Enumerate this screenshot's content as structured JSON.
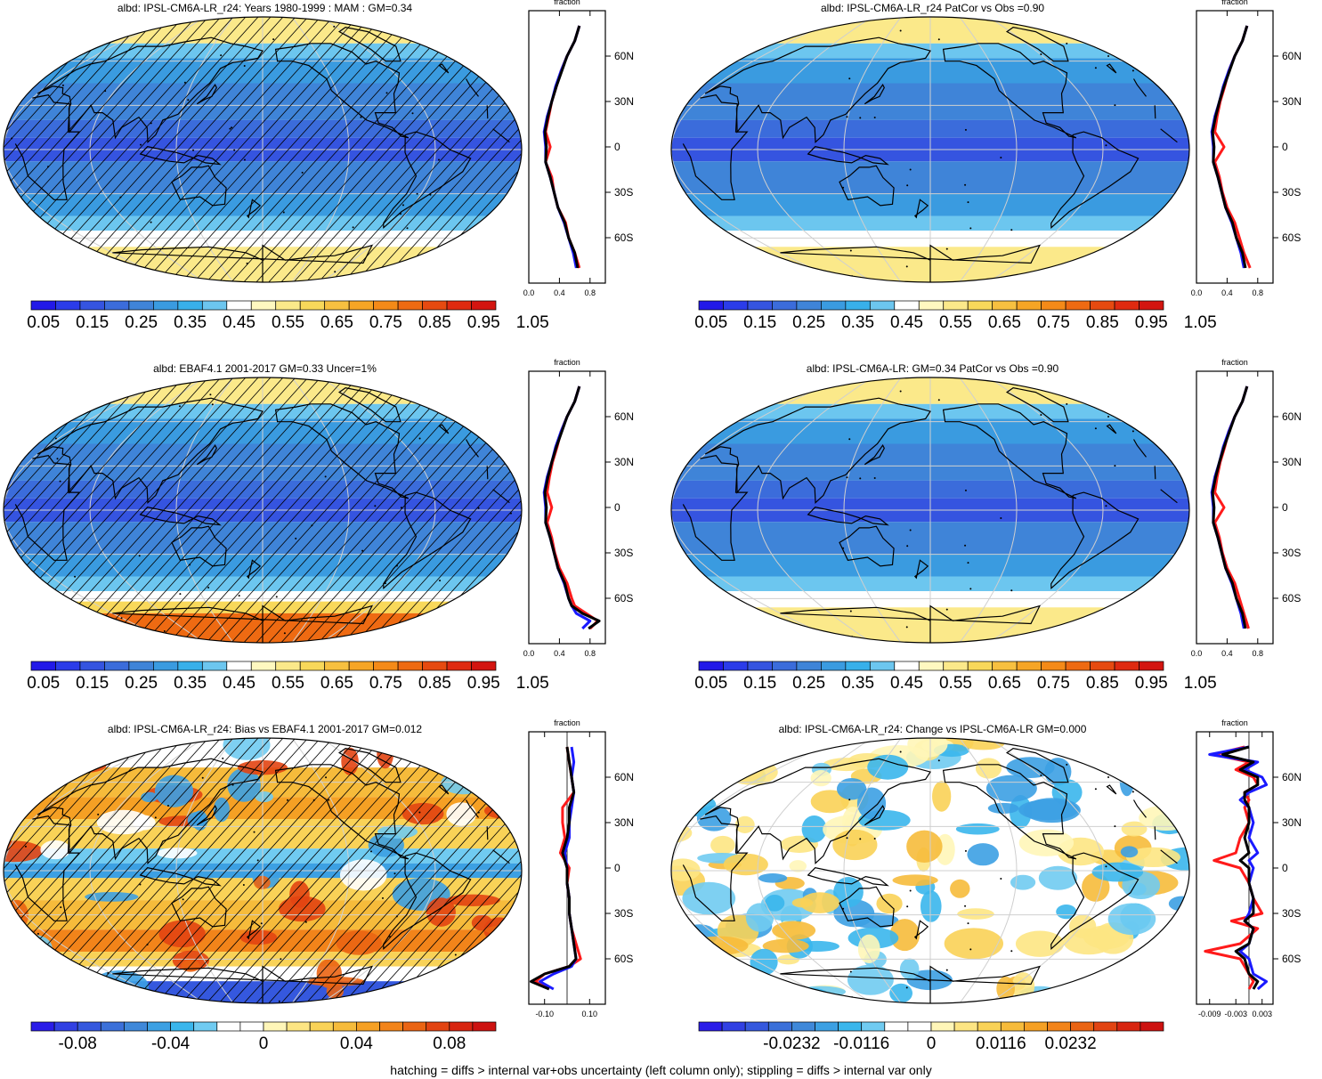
{
  "footer": "hatching = diffs > internal var+obs uncertainty (left column only); stippling = diffs > internal var only",
  "colors": {
    "abs_scale": [
      "#2219e8",
      "#2b3ce9",
      "#3554e0",
      "#3b6cdb",
      "#3f84d8",
      "#3a9be0",
      "#38b0ea",
      "#6cc6ef",
      "#ffffff",
      "#fff8c0",
      "#fbe98a",
      "#f8d85a",
      "#f7c040",
      "#f6a525",
      "#f48a18",
      "#ee6a12",
      "#e64a10",
      "#df2a10",
      "#d31510"
    ],
    "land_outline": "#000000",
    "red_series": "#ff1a1a",
    "blue_series": "#1a1aff",
    "black_series": "#000000"
  },
  "panels": [
    {
      "title": "albd: IPSL-CM6A-LR_r24: Years 1980-1999 : MAM : GM=0.34",
      "map_kind": "albedo",
      "hatched": true,
      "zonal": {
        "label": "fraction",
        "xlim": [
          0,
          1
        ],
        "xticks": [
          "0.0",
          "0.4",
          "0.8"
        ],
        "xtick_vals": [
          0,
          0.4,
          0.8
        ],
        "ylim": [
          -90,
          90
        ],
        "yticks": [
          "60N",
          "30N",
          "0",
          "30S",
          "60S"
        ],
        "ytick_vals": [
          60,
          30,
          0,
          -30,
          -60
        ],
        "ref_line": null,
        "lat": [
          80,
          70,
          60,
          50,
          40,
          30,
          20,
          10,
          0,
          -10,
          -20,
          -30,
          -40,
          -50,
          -60,
          -70,
          -80
        ],
        "red": [
          0.66,
          0.6,
          0.5,
          0.42,
          0.36,
          0.3,
          0.26,
          0.22,
          0.28,
          0.22,
          0.3,
          0.33,
          0.38,
          0.48,
          0.52,
          0.6,
          0.66
        ],
        "blue": [
          0.66,
          0.6,
          0.5,
          0.42,
          0.35,
          0.3,
          0.24,
          0.2,
          0.22,
          0.22,
          0.28,
          0.33,
          0.38,
          0.46,
          0.52,
          0.58,
          0.62
        ],
        "black": [
          0.66,
          0.6,
          0.5,
          0.43,
          0.36,
          0.3,
          0.25,
          0.21,
          0.23,
          0.22,
          0.28,
          0.33,
          0.38,
          0.47,
          0.52,
          0.6,
          0.64
        ]
      },
      "colorbar": {
        "kind": "abs",
        "labels": [
          "0.05",
          "0.15",
          "0.25",
          "0.35",
          "0.45",
          "0.55",
          "0.65",
          "0.75",
          "0.85",
          "0.95",
          "1.05"
        ]
      }
    },
    {
      "title": "albd: IPSL-CM6A-LR_r24 PatCor vs Obs =0.90",
      "map_kind": "albedo",
      "hatched": false,
      "zonal": {
        "label": "fraction",
        "xlim": [
          0,
          1
        ],
        "xticks": [
          "0.0",
          "0.4",
          "0.8"
        ],
        "xtick_vals": [
          0,
          0.4,
          0.8
        ],
        "ylim": [
          -90,
          90
        ],
        "yticks": [
          "60N",
          "30N",
          "0",
          "30S",
          "60S"
        ],
        "ytick_vals": [
          60,
          30,
          0,
          -30,
          -60
        ],
        "ref_line": null,
        "lat": [
          80,
          70,
          60,
          50,
          40,
          30,
          20,
          10,
          0,
          -10,
          -20,
          -30,
          -40,
          -50,
          -60,
          -70,
          -80
        ],
        "red": [
          0.66,
          0.6,
          0.5,
          0.42,
          0.37,
          0.31,
          0.27,
          0.24,
          0.36,
          0.24,
          0.3,
          0.34,
          0.4,
          0.5,
          0.56,
          0.62,
          0.7
        ],
        "blue": [
          0.66,
          0.6,
          0.5,
          0.42,
          0.35,
          0.3,
          0.24,
          0.2,
          0.22,
          0.22,
          0.28,
          0.33,
          0.38,
          0.46,
          0.52,
          0.58,
          0.62
        ],
        "black": [
          0.66,
          0.6,
          0.5,
          0.43,
          0.36,
          0.3,
          0.25,
          0.21,
          0.23,
          0.22,
          0.28,
          0.33,
          0.38,
          0.47,
          0.52,
          0.6,
          0.64
        ]
      },
      "colorbar": {
        "kind": "abs",
        "labels": [
          "0.05",
          "0.15",
          "0.25",
          "0.35",
          "0.45",
          "0.55",
          "0.65",
          "0.75",
          "0.85",
          "0.95",
          "1.05"
        ]
      }
    },
    {
      "title": "albd: EBAF4.1 2001-2017 GM=0.33 Uncer=1%",
      "map_kind": "albedo_obs",
      "hatched": true,
      "zonal": {
        "label": "fraction",
        "xlim": [
          0,
          1
        ],
        "xticks": [
          "0.0",
          "0.4",
          "0.8"
        ],
        "xtick_vals": [
          0,
          0.4,
          0.8
        ],
        "ylim": [
          -90,
          90
        ],
        "yticks": [
          "60N",
          "30N",
          "0",
          "30S",
          "60S"
        ],
        "ytick_vals": [
          60,
          30,
          0,
          -30,
          -60
        ],
        "ref_line": null,
        "lat": [
          80,
          70,
          60,
          50,
          40,
          30,
          20,
          10,
          0,
          -10,
          -20,
          -30,
          -40,
          -50,
          -60,
          -65,
          -70,
          -75,
          -80
        ],
        "red": [
          0.66,
          0.6,
          0.5,
          0.42,
          0.37,
          0.31,
          0.27,
          0.24,
          0.3,
          0.24,
          0.3,
          0.34,
          0.4,
          0.5,
          0.56,
          0.6,
          0.75,
          0.9,
          0.8
        ],
        "blue": [
          0.66,
          0.6,
          0.5,
          0.42,
          0.35,
          0.3,
          0.24,
          0.2,
          0.22,
          0.22,
          0.28,
          0.33,
          0.38,
          0.46,
          0.52,
          0.56,
          0.62,
          0.8,
          0.7
        ],
        "black": [
          0.66,
          0.6,
          0.5,
          0.43,
          0.36,
          0.3,
          0.25,
          0.21,
          0.23,
          0.22,
          0.28,
          0.33,
          0.38,
          0.47,
          0.52,
          0.56,
          0.7,
          0.92,
          0.78
        ]
      },
      "colorbar": {
        "kind": "abs",
        "labels": [
          "0.05",
          "0.15",
          "0.25",
          "0.35",
          "0.45",
          "0.55",
          "0.65",
          "0.75",
          "0.85",
          "0.95",
          "1.05"
        ]
      }
    },
    {
      "title": "albd: IPSL-CM6A-LR: GM=0.34 PatCor vs Obs =0.90",
      "map_kind": "albedo",
      "hatched": false,
      "zonal": {
        "label": "fraction",
        "xlim": [
          0,
          1
        ],
        "xticks": [
          "0.0",
          "0.4",
          "0.8"
        ],
        "xtick_vals": [
          0,
          0.4,
          0.8
        ],
        "ylim": [
          -90,
          90
        ],
        "yticks": [
          "60N",
          "30N",
          "0",
          "30S",
          "60S"
        ],
        "ytick_vals": [
          60,
          30,
          0,
          -30,
          -60
        ],
        "ref_line": null,
        "lat": [
          80,
          70,
          60,
          50,
          40,
          30,
          20,
          10,
          0,
          -10,
          -20,
          -30,
          -40,
          -50,
          -60,
          -70,
          -80
        ],
        "red": [
          0.66,
          0.6,
          0.5,
          0.42,
          0.37,
          0.31,
          0.27,
          0.24,
          0.36,
          0.24,
          0.3,
          0.34,
          0.4,
          0.5,
          0.56,
          0.62,
          0.68
        ],
        "blue": [
          0.66,
          0.6,
          0.5,
          0.42,
          0.35,
          0.3,
          0.24,
          0.2,
          0.22,
          0.22,
          0.28,
          0.33,
          0.38,
          0.46,
          0.52,
          0.58,
          0.62
        ],
        "black": [
          0.66,
          0.6,
          0.5,
          0.43,
          0.36,
          0.3,
          0.25,
          0.21,
          0.23,
          0.22,
          0.28,
          0.33,
          0.38,
          0.47,
          0.52,
          0.6,
          0.64
        ]
      },
      "colorbar": {
        "kind": "abs",
        "labels": [
          "0.05",
          "0.15",
          "0.25",
          "0.35",
          "0.45",
          "0.55",
          "0.65",
          "0.75",
          "0.85",
          "0.95",
          "1.05"
        ]
      }
    },
    {
      "title": "albd: IPSL-CM6A-LR_r24: Bias vs EBAF4.1 2001-2017 GM=0.012",
      "map_kind": "bias",
      "hatched": true,
      "zonal": {
        "label": "fraction",
        "xlim": [
          -0.17,
          0.17
        ],
        "xticks": [
          "-0.10",
          "0.10"
        ],
        "xtick_vals": [
          -0.1,
          0.1
        ],
        "ylim": [
          -90,
          90
        ],
        "yticks": [
          "60N",
          "30N",
          "0",
          "30S",
          "60S"
        ],
        "ytick_vals": [
          60,
          30,
          0,
          -30,
          -60
        ],
        "ref_line": 0,
        "lat": [
          80,
          70,
          60,
          50,
          40,
          30,
          20,
          10,
          0,
          -10,
          -20,
          -30,
          -40,
          -50,
          -60,
          -65,
          -70,
          -75,
          -80
        ],
        "red": [
          0.0,
          0.01,
          0.02,
          0.03,
          -0.02,
          -0.02,
          -0.01,
          -0.03,
          0.01,
          0.0,
          0.01,
          0.01,
          0.02,
          0.04,
          0.06,
          0.01,
          -0.1,
          -0.14,
          -0.08
        ],
        "blue": [
          0.02,
          0.03,
          0.02,
          0.03,
          0.02,
          0.01,
          0.01,
          -0.01,
          0.0,
          0.0,
          0.01,
          0.01,
          0.02,
          0.03,
          0.04,
          0.02,
          -0.06,
          -0.12,
          -0.06
        ],
        "black": [
          0.0,
          0.01,
          0.02,
          0.03,
          0.01,
          0.01,
          0.0,
          -0.02,
          0.0,
          0.0,
          0.01,
          0.01,
          0.02,
          0.03,
          0.04,
          0.01,
          -0.1,
          -0.16,
          -0.08
        ]
      },
      "colorbar": {
        "kind": "div",
        "labels": [
          "-0.08",
          "-0.04",
          "0",
          "0.04",
          "0.08"
        ],
        "label_cells": [
          2,
          6,
          10,
          14,
          18
        ]
      }
    },
    {
      "title": "albd: IPSL-CM6A-LR_r24: Change vs IPSL-CM6A-LR GM=0.000",
      "map_kind": "change",
      "hatched": false,
      "zonal": {
        "label": "fraction",
        "xlim": [
          -0.012,
          0.0055
        ],
        "xticks": [
          "-0.009",
          "-0.003",
          "0.003"
        ],
        "xtick_vals": [
          -0.009,
          -0.003,
          0.003
        ],
        "ylim": [
          -90,
          90
        ],
        "yticks": [
          "60N",
          "30N",
          "0",
          "30S",
          "60S"
        ],
        "ytick_vals": [
          60,
          30,
          0,
          -30,
          -60
        ],
        "ref_line": 0,
        "lat": [
          80,
          75,
          70,
          65,
          60,
          55,
          50,
          45,
          40,
          30,
          20,
          10,
          5,
          0,
          -10,
          -20,
          -30,
          -35,
          -40,
          -50,
          -55,
          -60,
          -70,
          -75,
          -80
        ],
        "red": [
          -0.001,
          -0.008,
          0.0,
          -0.003,
          0.001,
          0.002,
          -0.001,
          0.0,
          -0.001,
          0.0,
          -0.002,
          -0.003,
          -0.008,
          -0.002,
          0.0,
          0.001,
          0.003,
          -0.004,
          0.002,
          -0.002,
          -0.01,
          -0.002,
          0.0,
          0.001,
          0.0
        ],
        "blue": [
          0.0,
          -0.009,
          0.002,
          -0.001,
          0.003,
          0.004,
          0.0,
          -0.002,
          0.0,
          0.001,
          0.0,
          0.002,
          0.0,
          0.001,
          0.0,
          0.001,
          0.0,
          -0.001,
          0.001,
          0.0,
          -0.002,
          0.0,
          0.001,
          0.004,
          0.002
        ],
        "black": [
          0.0,
          -0.006,
          0.001,
          -0.002,
          0.002,
          0.002,
          -0.001,
          -0.001,
          0.0,
          0.0,
          -0.001,
          0.0,
          -0.002,
          0.0,
          0.0,
          0.001,
          0.001,
          -0.001,
          0.001,
          0.0,
          -0.003,
          -0.001,
          0.0,
          0.002,
          0.001
        ]
      },
      "colorbar": {
        "kind": "div",
        "labels": [
          "-0.0232",
          "-0.0116",
          "0",
          "0.0116",
          "0.0232"
        ],
        "label_cells": [
          4,
          7,
          10,
          13,
          16
        ]
      }
    }
  ]
}
